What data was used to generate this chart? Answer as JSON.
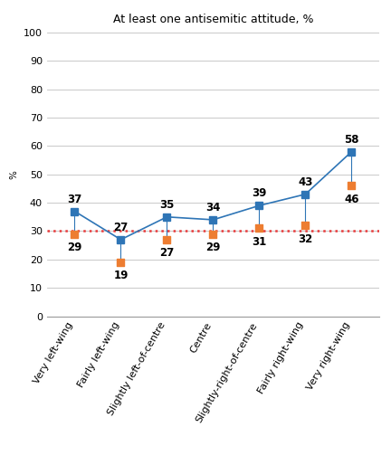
{
  "title": "At least one antisemitic attitude, %",
  "categories": [
    "Very left-wing",
    "Fairly left-wing",
    "Slightly left-of-centre",
    "Centre",
    "Slightly-right-of-centre",
    "Fairly right-wing",
    "Very right-wing"
  ],
  "blue_values": [
    37,
    27,
    35,
    34,
    39,
    43,
    58
  ],
  "orange_values": [
    29,
    19,
    27,
    29,
    31,
    32,
    46
  ],
  "blue_color": "#2E75B6",
  "orange_color": "#ED7D31",
  "dashed_line_y": 30,
  "dashed_line_color": "#E8393A",
  "ylabel": "%",
  "ylim": [
    0,
    100
  ],
  "yticks": [
    0,
    10,
    20,
    30,
    40,
    50,
    60,
    70,
    80,
    90,
    100
  ],
  "bg_color": "#FFFFFF",
  "plot_bg_color": "#FFFFFF",
  "grid_color": "#C0C0C0",
  "title_fontsize": 9,
  "label_fontsize": 7.5,
  "tick_fontsize": 8,
  "annot_fontsize": 8.5
}
